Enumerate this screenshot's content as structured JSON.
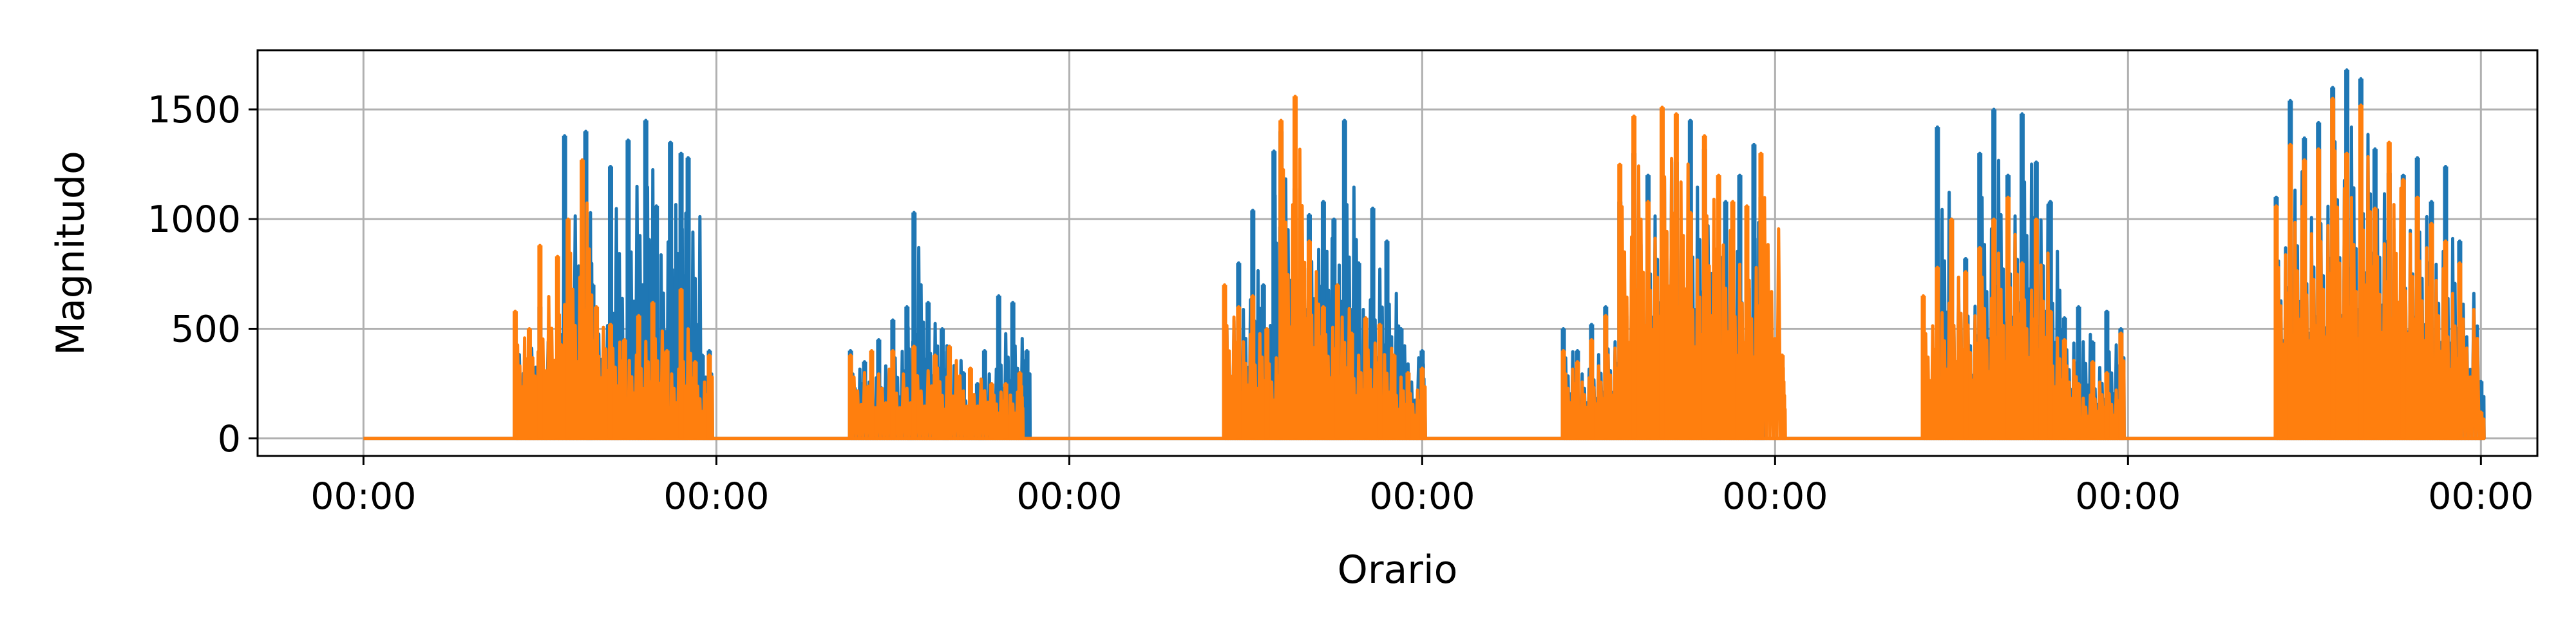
{
  "chart_data": {
    "type": "line",
    "title": "",
    "xlabel": "Orario",
    "ylabel": "Magnitudo",
    "x_ticks": [
      0,
      1,
      2,
      3,
      4,
      5,
      6
    ],
    "x_tick_labels": [
      "00:00",
      "00:00",
      "00:00",
      "00:00",
      "00:00",
      "00:00",
      "00:00"
    ],
    "xlim": [
      -0.3,
      6.16
    ],
    "y_ticks": [
      0,
      500,
      1000,
      1500
    ],
    "y_tick_labels": [
      "0",
      "500",
      "1000",
      "1500"
    ],
    "ylim": [
      -80,
      1770
    ],
    "grid": true,
    "legend": "none",
    "series": [
      {
        "color": "#1f77b4",
        "segments": [
          {
            "x": [
              0.43,
              0.5,
              0.57,
              0.63,
              0.65,
              0.7,
              0.75,
              0.8,
              0.83,
              0.87,
              0.9,
              0.92,
              0.96,
              0.98
            ],
            "y": [
              520,
              600,
              1380,
              1400,
              700,
              1240,
              1360,
              1450,
              1060,
              1350,
              1300,
              1280,
              380,
              400
            ]
          },
          {
            "x": [
              1.38,
              1.42,
              1.46,
              1.5,
              1.54,
              1.56,
              1.6,
              1.64,
              1.66,
              1.7,
              1.74,
              1.76,
              1.8,
              1.84,
              1.88
            ],
            "y": [
              400,
              350,
              450,
              540,
              600,
              1030,
              620,
              500,
              420,
              300,
              250,
              400,
              650,
              620,
              400
            ]
          },
          {
            "x": [
              2.44,
              2.48,
              2.52,
              2.55,
              2.58,
              2.6,
              2.64,
              2.68,
              2.72,
              2.75,
              2.78,
              2.82,
              2.86,
              2.9,
              2.94,
              3.0
            ],
            "y": [
              680,
              800,
              1040,
              700,
              1310,
              1400,
              1140,
              1020,
              1080,
              1000,
              1450,
              800,
              1050,
              900,
              500,
              400
            ]
          },
          {
            "x": [
              3.4,
              3.44,
              3.48,
              3.52,
              3.56,
              3.6,
              3.64,
              3.68,
              3.72,
              3.76,
              3.8,
              3.86,
              3.9,
              3.94,
              3.96
            ],
            "y": [
              500,
              400,
              520,
              600,
              1080,
              1300,
              1200,
              1500,
              1260,
              1450,
              1320,
              1080,
              1200,
              1340,
              1100
            ]
          },
          {
            "x": [
              4.42,
              4.46,
              4.5,
              4.54,
              4.58,
              4.62,
              4.66,
              4.7,
              4.74,
              4.78,
              4.82,
              4.86,
              4.9,
              4.94,
              4.98
            ],
            "y": [
              400,
              1420,
              1000,
              820,
              1300,
              1500,
              1200,
              1480,
              1260,
              1080,
              550,
              600,
              440,
              580,
              500
            ]
          },
          {
            "x": [
              5.42,
              5.46,
              5.5,
              5.54,
              5.58,
              5.62,
              5.66,
              5.7,
              5.74,
              5.78,
              5.82,
              5.86,
              5.9,
              5.94,
              6.0
            ],
            "y": [
              1100,
              1540,
              1370,
              1440,
              1600,
              1680,
              1640,
              1320,
              1210,
              1200,
              1280,
              1080,
              1240,
              900,
              260
            ]
          }
        ]
      },
      {
        "color": "#ff7f0e",
        "segments": [
          {
            "x": [
              0.43,
              0.47,
              0.5,
              0.55,
              0.58,
              0.62,
              0.66,
              0.7,
              0.74,
              0.78,
              0.82,
              0.86,
              0.9,
              0.94,
              0.98
            ],
            "y": [
              580,
              500,
              880,
              830,
              1000,
              1270,
              600,
              520,
              450,
              560,
              620,
              400,
              680,
              350,
              380
            ]
          },
          {
            "x": [
              1.38,
              1.44,
              1.5,
              1.56,
              1.62,
              1.66,
              1.72,
              1.78,
              1.82,
              1.86
            ],
            "y": [
              380,
              400,
              400,
              420,
              380,
              420,
              320,
              250,
              250,
              300
            ]
          },
          {
            "x": [
              2.44,
              2.48,
              2.52,
              2.56,
              2.6,
              2.64,
              2.68,
              2.72,
              2.76,
              2.8,
              2.84,
              2.88,
              2.92,
              2.96,
              3.0
            ],
            "y": [
              700,
              600,
              650,
              500,
              1450,
              1560,
              900,
              600,
              700,
              480,
              550,
              520,
              380,
              300,
              320
            ]
          },
          {
            "x": [
              3.4,
              3.44,
              3.48,
              3.52,
              3.56,
              3.6,
              3.64,
              3.68,
              3.72,
              3.76,
              3.8,
              3.84,
              3.88,
              3.92,
              3.96,
              4.02
            ],
            "y": [
              400,
              350,
              450,
              560,
              1250,
              1470,
              1080,
              1510,
              1480,
              1030,
              1380,
              1200,
              1080,
              1060,
              1300,
              380
            ]
          },
          {
            "x": [
              4.42,
              4.46,
              4.5,
              4.54,
              4.58,
              4.62,
              4.66,
              4.7,
              4.74,
              4.78,
              4.82,
              4.86,
              4.9,
              4.94,
              4.98
            ],
            "y": [
              650,
              780,
              1000,
              760,
              870,
              1000,
              1100,
              800,
              1000,
              580,
              450,
              250,
              350,
              300,
              480
            ]
          },
          {
            "x": [
              5.42,
              5.46,
              5.5,
              5.54,
              5.58,
              5.62,
              5.66,
              5.7,
              5.74,
              5.78,
              5.82,
              5.86,
              5.9,
              5.94,
              6.0
            ],
            "y": [
              1060,
              1340,
              1270,
              1320,
              1550,
              1300,
              1520,
              1050,
              1350,
              1180,
              1100,
              980,
              900,
              800,
              120
            ]
          }
        ]
      }
    ]
  }
}
